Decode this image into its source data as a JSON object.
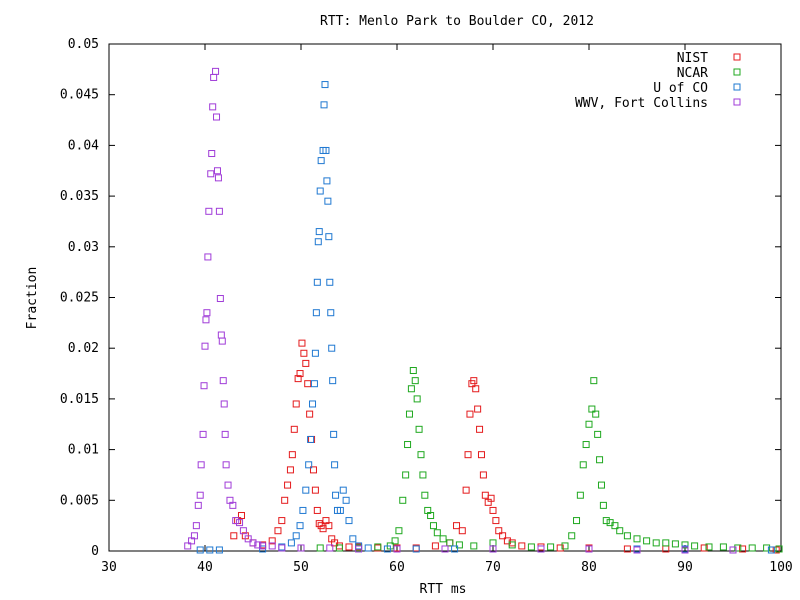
{
  "chart_data": {
    "type": "scatter",
    "title": "RTT: Menlo Park to Boulder CO, 2012",
    "xlabel": "RTT ms",
    "ylabel": "Fraction",
    "xlim": [
      30,
      100
    ],
    "ylim": [
      0,
      0.05
    ],
    "x_ticks": [
      "30",
      "40",
      "50",
      "60",
      "70",
      "80",
      "90",
      "100"
    ],
    "y_ticks": [
      "0",
      "0.005",
      "0.01",
      "0.015",
      "0.02",
      "0.025",
      "0.03",
      "0.035",
      "0.04",
      "0.045",
      "0.05"
    ],
    "grid": false,
    "legend_position": "top-right",
    "marker": "open-square",
    "series": [
      {
        "name": "NIST",
        "color": "#e41a1c",
        "points": [
          [
            43.0,
            0.0015
          ],
          [
            43.4,
            0.003
          ],
          [
            43.8,
            0.0035
          ],
          [
            44.2,
            0.0015
          ],
          [
            45.0,
            0.0008
          ],
          [
            46.0,
            0.0006
          ],
          [
            47.0,
            0.001
          ],
          [
            47.6,
            0.002
          ],
          [
            48.0,
            0.003
          ],
          [
            48.3,
            0.005
          ],
          [
            48.6,
            0.0065
          ],
          [
            48.9,
            0.008
          ],
          [
            49.1,
            0.0095
          ],
          [
            49.3,
            0.012
          ],
          [
            49.5,
            0.0145
          ],
          [
            49.7,
            0.017
          ],
          [
            49.9,
            0.0175
          ],
          [
            50.1,
            0.0205
          ],
          [
            50.3,
            0.0195
          ],
          [
            50.5,
            0.0185
          ],
          [
            50.7,
            0.0165
          ],
          [
            50.9,
            0.0135
          ],
          [
            51.1,
            0.011
          ],
          [
            51.3,
            0.008
          ],
          [
            51.5,
            0.006
          ],
          [
            51.7,
            0.004
          ],
          [
            51.9,
            0.0027
          ],
          [
            52.1,
            0.0025
          ],
          [
            52.3,
            0.0022
          ],
          [
            52.6,
            0.003
          ],
          [
            52.9,
            0.0025
          ],
          [
            53.2,
            0.0012
          ],
          [
            53.5,
            0.0008
          ],
          [
            54.0,
            0.0005
          ],
          [
            55.0,
            0.0004
          ],
          [
            56.0,
            0.0004
          ],
          [
            58.0,
            0.0003
          ],
          [
            60.0,
            0.0003
          ],
          [
            62.0,
            0.0003
          ],
          [
            64.0,
            0.0005
          ],
          [
            65.5,
            0.0008
          ],
          [
            66.2,
            0.0025
          ],
          [
            66.8,
            0.002
          ],
          [
            67.2,
            0.006
          ],
          [
            67.4,
            0.0095
          ],
          [
            67.6,
            0.0135
          ],
          [
            67.8,
            0.0165
          ],
          [
            68.0,
            0.0168
          ],
          [
            68.2,
            0.016
          ],
          [
            68.4,
            0.014
          ],
          [
            68.6,
            0.012
          ],
          [
            68.8,
            0.0095
          ],
          [
            69.0,
            0.0075
          ],
          [
            69.2,
            0.0055
          ],
          [
            69.5,
            0.0048
          ],
          [
            69.8,
            0.0052
          ],
          [
            70.0,
            0.004
          ],
          [
            70.3,
            0.003
          ],
          [
            70.6,
            0.002
          ],
          [
            71.0,
            0.0015
          ],
          [
            71.5,
            0.001
          ],
          [
            72.0,
            0.0008
          ],
          [
            73.0,
            0.0005
          ],
          [
            75.0,
            0.0004
          ],
          [
            77.0,
            0.0003
          ],
          [
            80.0,
            0.0003
          ],
          [
            84.0,
            0.0002
          ],
          [
            88.0,
            0.0002
          ],
          [
            92.0,
            0.0003
          ],
          [
            96.0,
            0.0002
          ],
          [
            99.5,
            0.0001
          ]
        ]
      },
      {
        "name": "NCAR",
        "color": "#1fa81f",
        "points": [
          [
            52.0,
            0.0003
          ],
          [
            54.0,
            0.0003
          ],
          [
            56.0,
            0.0003
          ],
          [
            58.0,
            0.0004
          ],
          [
            59.3,
            0.0005
          ],
          [
            59.8,
            0.001
          ],
          [
            60.2,
            0.002
          ],
          [
            60.6,
            0.005
          ],
          [
            60.9,
            0.0075
          ],
          [
            61.1,
            0.0105
          ],
          [
            61.3,
            0.0135
          ],
          [
            61.5,
            0.016
          ],
          [
            61.7,
            0.0178
          ],
          [
            61.9,
            0.0168
          ],
          [
            62.1,
            0.015
          ],
          [
            62.3,
            0.012
          ],
          [
            62.5,
            0.0095
          ],
          [
            62.7,
            0.0075
          ],
          [
            62.9,
            0.0055
          ],
          [
            63.2,
            0.004
          ],
          [
            63.5,
            0.0035
          ],
          [
            63.8,
            0.0025
          ],
          [
            64.2,
            0.0018
          ],
          [
            64.8,
            0.0012
          ],
          [
            65.5,
            0.0008
          ],
          [
            66.5,
            0.0006
          ],
          [
            68.0,
            0.0005
          ],
          [
            70.0,
            0.0008
          ],
          [
            72.0,
            0.0006
          ],
          [
            74.0,
            0.0004
          ],
          [
            76.0,
            0.0004
          ],
          [
            77.5,
            0.0005
          ],
          [
            78.2,
            0.0015
          ],
          [
            78.7,
            0.003
          ],
          [
            79.1,
            0.0055
          ],
          [
            79.4,
            0.0085
          ],
          [
            79.7,
            0.0105
          ],
          [
            80.0,
            0.0125
          ],
          [
            80.3,
            0.014
          ],
          [
            80.5,
            0.0168
          ],
          [
            80.7,
            0.0135
          ],
          [
            80.9,
            0.0115
          ],
          [
            81.1,
            0.009
          ],
          [
            81.3,
            0.0065
          ],
          [
            81.5,
            0.0045
          ],
          [
            81.8,
            0.003
          ],
          [
            82.2,
            0.0028
          ],
          [
            82.7,
            0.0025
          ],
          [
            83.2,
            0.002
          ],
          [
            84.0,
            0.0015
          ],
          [
            85.0,
            0.0012
          ],
          [
            86.0,
            0.001
          ],
          [
            87.0,
            0.0008
          ],
          [
            88.0,
            0.0008
          ],
          [
            89.0,
            0.0007
          ],
          [
            90.0,
            0.0006
          ],
          [
            91.0,
            0.0005
          ],
          [
            92.5,
            0.0004
          ],
          [
            94.0,
            0.0004
          ],
          [
            95.5,
            0.0003
          ],
          [
            97.0,
            0.0003
          ],
          [
            98.5,
            0.0003
          ],
          [
            99.8,
            0.0002
          ]
        ]
      },
      {
        "name": "U of CO",
        "color": "#1f78d1",
        "points": [
          [
            39.5,
            0.0001
          ],
          [
            40.5,
            0.0001
          ],
          [
            41.5,
            0.0001
          ],
          [
            46.0,
            0.0002
          ],
          [
            48.0,
            0.0004
          ],
          [
            49.0,
            0.0008
          ],
          [
            49.5,
            0.0015
          ],
          [
            49.9,
            0.0025
          ],
          [
            50.2,
            0.004
          ],
          [
            50.5,
            0.006
          ],
          [
            50.8,
            0.0085
          ],
          [
            51.0,
            0.011
          ],
          [
            51.2,
            0.0145
          ],
          [
            51.4,
            0.0165
          ],
          [
            51.5,
            0.0195
          ],
          [
            51.6,
            0.0235
          ],
          [
            51.7,
            0.0265
          ],
          [
            51.8,
            0.0305
          ],
          [
            51.9,
            0.0315
          ],
          [
            52.0,
            0.0355
          ],
          [
            52.1,
            0.0385
          ],
          [
            52.3,
            0.0395
          ],
          [
            52.4,
            0.044
          ],
          [
            52.5,
            0.046
          ],
          [
            52.6,
            0.0395
          ],
          [
            52.7,
            0.0365
          ],
          [
            52.8,
            0.0345
          ],
          [
            52.9,
            0.031
          ],
          [
            53.0,
            0.0265
          ],
          [
            53.1,
            0.0235
          ],
          [
            53.2,
            0.02
          ],
          [
            53.3,
            0.0168
          ],
          [
            53.4,
            0.0115
          ],
          [
            53.5,
            0.0085
          ],
          [
            53.6,
            0.0055
          ],
          [
            53.8,
            0.004
          ],
          [
            54.1,
            0.004
          ],
          [
            54.4,
            0.006
          ],
          [
            54.7,
            0.005
          ],
          [
            55.0,
            0.003
          ],
          [
            55.4,
            0.0012
          ],
          [
            56.0,
            0.0005
          ],
          [
            57.0,
            0.0003
          ],
          [
            59.0,
            0.0002
          ],
          [
            62.0,
            0.0002
          ],
          [
            66.0,
            0.0002
          ],
          [
            70.0,
            0.0002
          ],
          [
            75.0,
            0.0002
          ],
          [
            80.0,
            0.0002
          ],
          [
            85.0,
            0.0002
          ],
          [
            90.0,
            0.0002
          ],
          [
            95.0,
            0.0001
          ],
          [
            99.0,
            0.0001
          ]
        ]
      },
      {
        "name": "WWV, Fort Collins",
        "color": "#a03cd8",
        "points": [
          [
            38.2,
            0.0005
          ],
          [
            38.6,
            0.001
          ],
          [
            38.9,
            0.0015
          ],
          [
            39.1,
            0.0025
          ],
          [
            39.3,
            0.0045
          ],
          [
            39.5,
            0.0055
          ],
          [
            39.6,
            0.0085
          ],
          [
            39.8,
            0.0115
          ],
          [
            39.9,
            0.0163
          ],
          [
            40.0,
            0.0202
          ],
          [
            40.1,
            0.0228
          ],
          [
            40.2,
            0.0235
          ],
          [
            40.3,
            0.029
          ],
          [
            40.4,
            0.0335
          ],
          [
            40.6,
            0.0372
          ],
          [
            40.7,
            0.0392
          ],
          [
            40.8,
            0.0438
          ],
          [
            40.9,
            0.0467
          ],
          [
            41.1,
            0.0473
          ],
          [
            41.2,
            0.0428
          ],
          [
            41.3,
            0.0375
          ],
          [
            41.4,
            0.0368
          ],
          [
            41.5,
            0.0335
          ],
          [
            41.6,
            0.0249
          ],
          [
            41.7,
            0.0213
          ],
          [
            41.8,
            0.0207
          ],
          [
            41.9,
            0.0168
          ],
          [
            42.0,
            0.0145
          ],
          [
            42.1,
            0.0115
          ],
          [
            42.2,
            0.0085
          ],
          [
            42.4,
            0.0065
          ],
          [
            42.6,
            0.005
          ],
          [
            42.9,
            0.0045
          ],
          [
            43.2,
            0.003
          ],
          [
            43.6,
            0.0028
          ],
          [
            44.0,
            0.002
          ],
          [
            44.5,
            0.0012
          ],
          [
            45.0,
            0.0008
          ],
          [
            45.5,
            0.0006
          ],
          [
            46.0,
            0.0005
          ],
          [
            47.0,
            0.0005
          ],
          [
            48.0,
            0.0003
          ],
          [
            50.0,
            0.0003
          ],
          [
            53.0,
            0.0003
          ],
          [
            56.0,
            0.0002
          ],
          [
            60.0,
            0.0002
          ],
          [
            65.0,
            0.0002
          ],
          [
            70.0,
            0.0002
          ],
          [
            75.0,
            0.0002
          ],
          [
            80.0,
            0.0002
          ],
          [
            85.0,
            0.0001
          ],
          [
            90.0,
            0.0001
          ],
          [
            95.0,
            0.0001
          ]
        ]
      }
    ]
  }
}
